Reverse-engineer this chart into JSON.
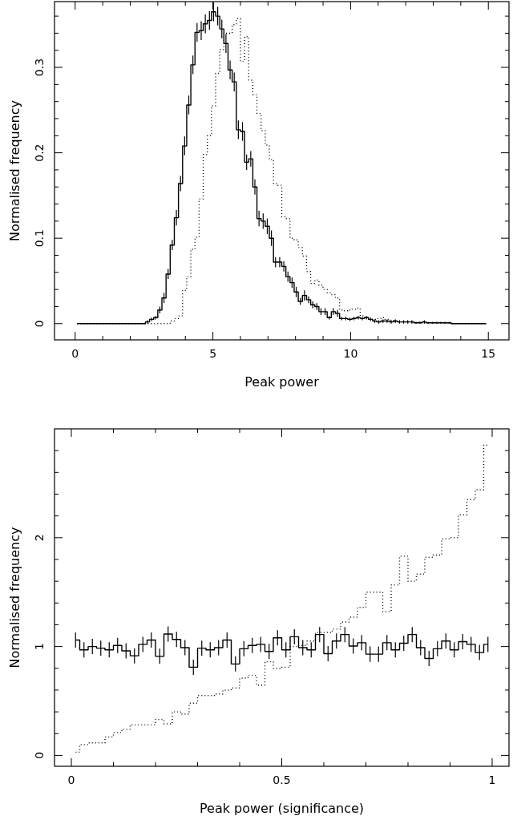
{
  "chart_data": [
    {
      "type": "step",
      "xlabel": "Peak power",
      "ylabel": "Normalised frequency",
      "xlim": [
        -0.75,
        15.75
      ],
      "ylim": [
        -0.019,
        0.377
      ],
      "xticks": [
        0,
        {
          "value": 1,
          "label": null
        },
        {
          "value": 2,
          "label": null
        },
        {
          "value": 3,
          "label": null
        },
        {
          "value": 4,
          "label": null
        },
        5,
        {
          "value": 6,
          "label": null
        },
        {
          "value": 7,
          "label": null
        },
        {
          "value": 8,
          "label": null
        },
        {
          "value": 9,
          "label": null
        },
        10,
        {
          "value": 11,
          "label": null
        },
        {
          "value": 12,
          "label": null
        },
        {
          "value": 13,
          "label": null
        },
        {
          "value": 14,
          "label": null
        },
        15
      ],
      "yticks": [
        0,
        {
          "value": 0.02,
          "label": null
        },
        {
          "value": 0.04,
          "label": null
        },
        {
          "value": 0.06,
          "label": null
        },
        {
          "value": 0.08,
          "label": null
        },
        0.1,
        {
          "value": 0.12,
          "label": null
        },
        {
          "value": 0.14,
          "label": null
        },
        {
          "value": 0.16,
          "label": null
        },
        {
          "value": 0.18,
          "label": null
        },
        0.2,
        {
          "value": 0.22,
          "label": null
        },
        {
          "value": 0.24,
          "label": null
        },
        {
          "value": 0.26,
          "label": null
        },
        {
          "value": 0.28,
          "label": null
        },
        0.3,
        {
          "value": 0.32,
          "label": null
        },
        {
          "value": 0.34,
          "label": null
        },
        {
          "value": 0.36,
          "label": null
        }
      ],
      "x": [
        0.075,
        0.225,
        0.375,
        0.525,
        0.675,
        0.825,
        0.975,
        1.125,
        1.275,
        1.425,
        1.575,
        1.725,
        1.875,
        2.025,
        2.175,
        2.325,
        2.475,
        2.625,
        2.775,
        2.925,
        3.075,
        3.225,
        3.375,
        3.525,
        3.675,
        3.825,
        3.975,
        4.125,
        4.275,
        4.425,
        4.575,
        4.725,
        4.875,
        5.025,
        5.175,
        5.325,
        5.475,
        5.625,
        5.775,
        5.925,
        6.075,
        6.225,
        6.375,
        6.525,
        6.675,
        6.825,
        6.975,
        7.125,
        7.275,
        7.425,
        7.575,
        7.725,
        7.875,
        8.025,
        8.175,
        8.325,
        8.475,
        8.625,
        8.775,
        8.925,
        9.075,
        9.225,
        9.375,
        9.525,
        9.675,
        9.825,
        9.975,
        10.125,
        10.275,
        10.425,
        10.575,
        10.725,
        10.875,
        11.025,
        11.175,
        11.325,
        11.475,
        11.625,
        11.775,
        11.925,
        12.075,
        12.225,
        12.375,
        12.525,
        12.675,
        12.825,
        12.975,
        13.125,
        13.275,
        13.425,
        13.575,
        13.725,
        13.875,
        14.025,
        14.175,
        14.325,
        14.475,
        14.625,
        14.775,
        14.925
      ],
      "series": [
        {
          "color": "#000000",
          "line_style": "solid",
          "values": [
            0,
            0,
            0,
            0,
            0,
            0,
            0,
            0,
            0,
            0,
            0,
            0,
            0,
            0,
            0,
            0,
            0,
            0.002,
            0.005,
            0.007,
            0.016,
            0.03,
            0.058,
            0.092,
            0.124,
            0.164,
            0.208,
            0.256,
            0.303,
            0.341,
            0.343,
            0.351,
            0.355,
            0.365,
            0.36,
            0.345,
            0.328,
            0.297,
            0.283,
            0.227,
            0.225,
            0.189,
            0.193,
            0.16,
            0.123,
            0.12,
            0.114,
            0.1,
            0.072,
            0.072,
            0.067,
            0.055,
            0.048,
            0.037,
            0.026,
            0.033,
            0.028,
            0.022,
            0.02,
            0.014,
            0.014,
            0.007,
            0.014,
            0.012,
            0.006,
            0.006,
            0.005,
            0.006,
            0.007,
            0.006,
            0.007,
            0.005,
            0.003,
            0.002,
            0.003,
            0.003,
            0.002,
            0.003,
            0.002,
            0.002,
            0.002,
            0.002,
            0.001,
            0.001,
            0.002,
            0.001,
            0.001,
            0.001,
            0.001,
            0.001,
            0.001,
            0,
            0,
            0,
            0,
            0,
            0,
            0,
            0,
            0
          ],
          "errors": [
            null,
            null,
            null,
            null,
            null,
            null,
            null,
            null,
            null,
            null,
            null,
            null,
            null,
            null,
            null,
            null,
            null,
            0.002,
            0.002,
            0.002,
            0.004,
            0.006,
            0.006,
            0.006,
            0.009,
            0.009,
            0.011,
            0.011,
            0.011,
            0.011,
            0.011,
            0.011,
            0.011,
            0.011,
            0.011,
            0.011,
            0.011,
            0.011,
            0.011,
            0.011,
            0.011,
            0.009,
            0.009,
            0.009,
            0.009,
            0.009,
            0.009,
            0.009,
            0.006,
            0.006,
            0.006,
            0.006,
            0.006,
            0.006,
            0.004,
            0.006,
            0.004,
            0.004,
            0.004,
            0.004,
            0.004,
            0.002,
            0.004,
            0.004,
            0.002,
            0.002,
            0.002,
            0.002,
            0.002,
            0.002,
            0.002,
            0.002,
            0.002,
            0.002,
            0.002,
            0.002,
            0.002,
            0.002,
            0.002,
            0.002,
            0.002,
            0.002,
            0.001,
            0.001,
            0.002,
            0.001,
            0.001,
            0.001,
            0.001,
            0.001,
            0.001,
            null,
            null,
            null,
            null,
            null,
            null,
            null,
            null,
            null
          ]
        },
        {
          "color": "#000000",
          "line_style": "dotted",
          "values": [
            0,
            0,
            0,
            0,
            0,
            0,
            0,
            0,
            0,
            0,
            0,
            0,
            0,
            0,
            0,
            0,
            0,
            0,
            0,
            0,
            0,
            0,
            0,
            0.003,
            0.006,
            0.009,
            0.039,
            0.055,
            0.087,
            0.101,
            0.146,
            0.198,
            0.22,
            0.255,
            0.293,
            0.321,
            0.34,
            0.34,
            0.35,
            0.357,
            0.307,
            0.336,
            0.285,
            0.268,
            0.246,
            0.226,
            0.209,
            0.192,
            0.164,
            0.162,
            0.125,
            0.123,
            0.1,
            0.098,
            0.089,
            0.079,
            0.061,
            0.047,
            0.051,
            0.045,
            0.04,
            0.036,
            0.034,
            0.03,
            0.016,
            0.015,
            0.016,
            0.017,
            0.018,
            0.009,
            0.007,
            0.005,
            0.005,
            0.006,
            0.007,
            0.005,
            0.004,
            0.002,
            0.002,
            0.002,
            0.002,
            0.002,
            0.001,
            0.002,
            0.001,
            0.001,
            0.001,
            0.001,
            0.001,
            0.001,
            0.001,
            0,
            0,
            0,
            0,
            0,
            0,
            0,
            0,
            0
          ]
        }
      ]
    },
    {
      "type": "step",
      "xlabel": "Peak power (significance)",
      "ylabel": "Normalised frequency",
      "xlim": [
        -0.04,
        1.04
      ],
      "ylim": [
        -0.1,
        3
      ],
      "xticks": [
        0,
        {
          "value": 0.1,
          "label": null
        },
        {
          "value": 0.2,
          "label": null
        },
        {
          "value": 0.3,
          "label": null
        },
        {
          "value": 0.4,
          "label": null
        },
        0.5,
        {
          "value": 0.6,
          "label": null
        },
        {
          "value": 0.7,
          "label": null
        },
        {
          "value": 0.8,
          "label": null
        },
        {
          "value": 0.9,
          "label": null
        },
        1
      ],
      "yticks": [
        0,
        {
          "value": 0.2,
          "label": null
        },
        {
          "value": 0.4,
          "label": null
        },
        {
          "value": 0.6,
          "label": null
        },
        {
          "value": 0.8,
          "label": null
        },
        1,
        {
          "value": 1.2,
          "label": null
        },
        {
          "value": 1.4,
          "label": null
        },
        {
          "value": 1.6,
          "label": null
        },
        {
          "value": 1.8,
          "label": null
        },
        2,
        {
          "value": 2.2,
          "label": null
        },
        {
          "value": 2.4,
          "label": null
        },
        {
          "value": 2.6,
          "label": null
        },
        {
          "value": 2.8,
          "label": null
        }
      ],
      "x": [
        0.01,
        0.03,
        0.05,
        0.07,
        0.09,
        0.11,
        0.13,
        0.15,
        0.17,
        0.19,
        0.21,
        0.23,
        0.25,
        0.27,
        0.29,
        0.31,
        0.33,
        0.35,
        0.37,
        0.39,
        0.41,
        0.43,
        0.45,
        0.47,
        0.49,
        0.51,
        0.53,
        0.55,
        0.57,
        0.59,
        0.61,
        0.63,
        0.65,
        0.67,
        0.69,
        0.71,
        0.73,
        0.75,
        0.77,
        0.79,
        0.81,
        0.83,
        0.85,
        0.87,
        0.89,
        0.91,
        0.93,
        0.95,
        0.97,
        0.99
      ],
      "series": [
        {
          "color": "#000000",
          "line_style": "solid",
          "values": [
            1.06,
            0.97,
            1.0,
            0.985,
            0.97,
            1.01,
            0.96,
            0.915,
            1.02,
            1.06,
            0.91,
            1.115,
            1.065,
            0.99,
            0.81,
            0.985,
            0.97,
            0.99,
            1.06,
            0.84,
            0.98,
            1.01,
            1.02,
            0.955,
            1.08,
            0.97,
            1.09,
            0.99,
            0.97,
            1.11,
            0.935,
            1.05,
            1.11,
            1.005,
            1.035,
            0.93,
            0.93,
            1.035,
            0.97,
            1.03,
            1.11,
            0.99,
            0.89,
            0.98,
            1.05,
            0.97,
            1.045,
            1.02,
            0.945,
            1.02
          ],
          "errors": [
            0.07,
            0.07,
            0.07,
            0.07,
            0.07,
            0.07,
            0.07,
            0.07,
            0.07,
            0.07,
            0.07,
            0.07,
            0.07,
            0.07,
            0.07,
            0.07,
            0.07,
            0.07,
            0.07,
            0.07,
            0.07,
            0.07,
            0.07,
            0.07,
            0.07,
            0.07,
            0.07,
            0.07,
            0.07,
            0.07,
            0.07,
            0.07,
            0.07,
            0.07,
            0.07,
            0.07,
            0.07,
            0.07,
            0.07,
            0.07,
            0.07,
            0.07,
            0.07,
            0.07,
            0.07,
            0.07,
            0.07,
            0.07,
            0.07,
            0.07
          ]
        },
        {
          "color": "#000000",
          "line_style": "dotted",
          "values": [
            0.03,
            0.1,
            0.115,
            0.115,
            0.17,
            0.21,
            0.24,
            0.28,
            0.28,
            0.28,
            0.33,
            0.29,
            0.4,
            0.38,
            0.48,
            0.55,
            0.55,
            0.565,
            0.6,
            0.62,
            0.71,
            0.735,
            0.645,
            0.86,
            0.8,
            0.81,
            1.0,
            1.01,
            1.05,
            1.13,
            1.13,
            1.16,
            1.225,
            1.27,
            1.36,
            1.5,
            1.5,
            1.32,
            1.565,
            1.83,
            1.6,
            1.665,
            1.82,
            1.84,
            1.99,
            2.0,
            2.21,
            2.35,
            2.44,
            2.85
          ]
        }
      ]
    }
  ]
}
